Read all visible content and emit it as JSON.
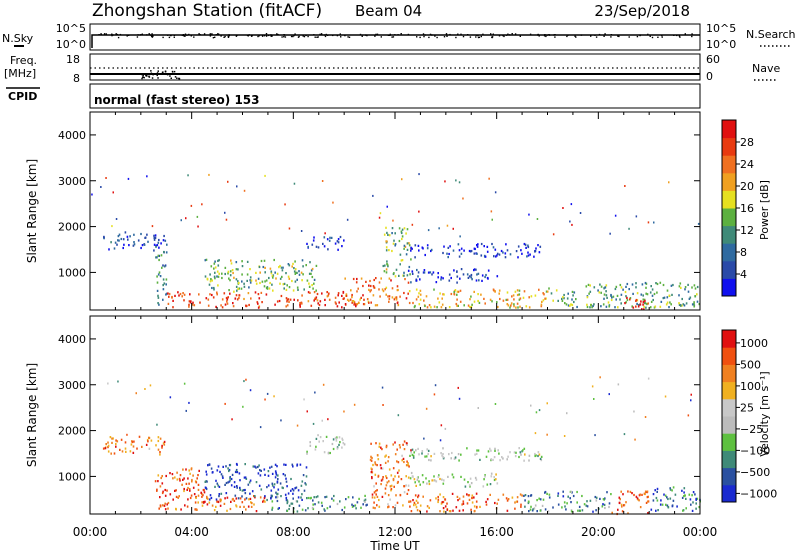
{
  "header": {
    "station": "Zhongshan Station (fitACF)",
    "beam": "Beam 04",
    "date": "23/Sep/2018"
  },
  "meta_panels": {
    "nsky_label": "N.Sky",
    "nsky_ticks": [
      "10^5",
      "10^0"
    ],
    "nsearch_label": "N.Search",
    "nsearch_ticks": [
      "10^5",
      "10^0"
    ],
    "freq_label": "Freq.",
    "freq_unit": "[MHz]",
    "freq_ticks": [
      "18",
      "8"
    ],
    "nave_label": "Nave",
    "nave_ticks": [
      "60",
      "0"
    ],
    "cpid_label": "CPID",
    "cpid_value": "normal (fast stereo) 153"
  },
  "chart_data": [
    {
      "type": "heatmap",
      "name": "power",
      "ylabel": "Slant Range [km]",
      "ylim": [
        180,
        4500
      ],
      "yticks": [
        1000,
        2000,
        3000,
        4000
      ],
      "xlim": [
        0,
        24
      ],
      "colorbar": {
        "label": "Power [dB]",
        "ticks": [
          "4",
          "8",
          "12",
          "16",
          "20",
          "24",
          "28"
        ],
        "colors": [
          "#1010ee",
          "#2a4aa8",
          "#2f6aa0",
          "#3f8a78",
          "#5cb040",
          "#e6e020",
          "#f0a020",
          "#f07020",
          "#e83a10",
          "#e01010"
        ]
      },
      "regions": [
        {
          "t0": 0.5,
          "t1": 3.0,
          "r0": 1500,
          "r1": 1900,
          "level": 0.15
        },
        {
          "t0": 2.5,
          "t1": 3.0,
          "r0": 300,
          "r1": 1500,
          "level": 0.3
        },
        {
          "t0": 3.0,
          "t1": 10.5,
          "r0": 250,
          "r1": 600,
          "level": 0.85
        },
        {
          "t0": 4.5,
          "t1": 9.0,
          "r0": 600,
          "r1": 1300,
          "level": 0.45
        },
        {
          "t0": 8.5,
          "t1": 10.0,
          "r0": 1500,
          "r1": 1800,
          "level": 0.1
        },
        {
          "t0": 10.0,
          "t1": 12.5,
          "r0": 300,
          "r1": 900,
          "level": 0.75
        },
        {
          "t0": 11.5,
          "t1": 12.6,
          "r0": 900,
          "r1": 2000,
          "level": 0.45
        },
        {
          "t0": 12.5,
          "t1": 17.8,
          "r0": 1350,
          "r1": 1650,
          "level": 0.1
        },
        {
          "t0": 12.5,
          "t1": 16.0,
          "r0": 800,
          "r1": 1100,
          "level": 0.12
        },
        {
          "t0": 12.5,
          "t1": 18.0,
          "r0": 250,
          "r1": 650,
          "level": 0.6
        },
        {
          "t0": 18.0,
          "t1": 24.0,
          "r0": 250,
          "r1": 800,
          "level": 0.4
        },
        {
          "t0": 21.0,
          "t1": 22.0,
          "r0": 200,
          "r1": 500,
          "level": 0.95
        }
      ]
    },
    {
      "type": "heatmap",
      "name": "velocity",
      "ylabel": "Slant Range [km]",
      "xlabel": "Time UT",
      "ylim": [
        180,
        4500
      ],
      "yticks": [
        1000,
        2000,
        3000,
        4000
      ],
      "xlim": [
        0,
        24
      ],
      "xticks": [
        "00:00",
        "04:00",
        "08:00",
        "12:00",
        "16:00",
        "20:00",
        "00:00"
      ],
      "colorbar": {
        "label": "Velocity [m s⁻¹]",
        "ticks": [
          "1000",
          "500",
          "100",
          "25",
          "−25",
          "−100",
          "−500",
          "−1000"
        ],
        "colors": [
          "#1a2ad0",
          "#2a50a0",
          "#3f8a78",
          "#5ec040",
          "#bcbcbc",
          "#c8c8c8",
          "#f0b020",
          "#f08020",
          "#f05010",
          "#e01010"
        ]
      },
      "regions": [
        {
          "t0": 0.5,
          "t1": 3.0,
          "r0": 1500,
          "r1": 1900,
          "level": 0.75
        },
        {
          "t0": 2.5,
          "t1": 4.5,
          "r0": 300,
          "r1": 1200,
          "level": 0.85
        },
        {
          "t0": 4.0,
          "t1": 7.0,
          "r0": 250,
          "r1": 600,
          "level": 0.8
        },
        {
          "t0": 4.5,
          "t1": 8.5,
          "r0": 500,
          "r1": 1300,
          "level": 0.1
        },
        {
          "t0": 7.0,
          "t1": 11.0,
          "r0": 250,
          "r1": 600,
          "level": 0.25
        },
        {
          "t0": 8.5,
          "t1": 10.0,
          "r0": 1500,
          "r1": 1900,
          "level": 0.45
        },
        {
          "t0": 11.0,
          "t1": 12.6,
          "r0": 300,
          "r1": 1800,
          "level": 0.75
        },
        {
          "t0": 12.5,
          "t1": 17.8,
          "r0": 1350,
          "r1": 1650,
          "level": 0.45
        },
        {
          "t0": 12.5,
          "t1": 16.0,
          "r0": 800,
          "r1": 1100,
          "level": 0.45
        },
        {
          "t0": 12.5,
          "t1": 17.0,
          "r0": 250,
          "r1": 650,
          "level": 0.8
        },
        {
          "t0": 17.0,
          "t1": 20.5,
          "r0": 250,
          "r1": 700,
          "level": 0.25
        },
        {
          "t0": 20.5,
          "t1": 22.0,
          "r0": 200,
          "r1": 700,
          "level": 0.85
        },
        {
          "t0": 22.0,
          "t1": 24.0,
          "r0": 250,
          "r1": 800,
          "level": 0.2
        }
      ]
    }
  ]
}
